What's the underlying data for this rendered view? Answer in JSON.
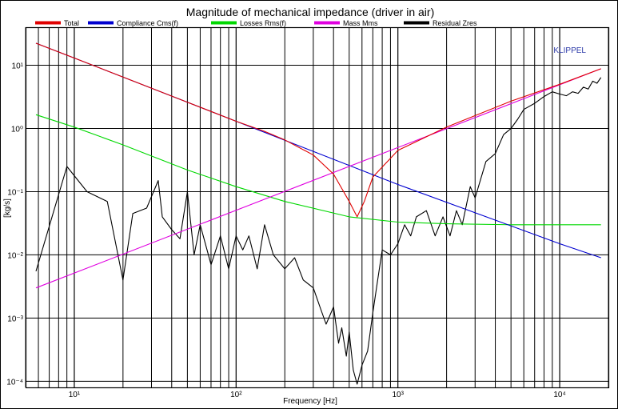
{
  "chart_data": {
    "type": "line",
    "title": "Magnitude of mechanical impedance (driver in air)",
    "xlabel": "Frequency [Hz]",
    "ylabel": "[kg/s]",
    "watermark": "KLIPPEL",
    "x_scale": "log",
    "y_scale": "log",
    "xlim": [
      5,
      20000
    ],
    "ylim": [
      8e-05,
      40
    ],
    "x_ticks": [
      {
        "value": 10,
        "label": "10¹"
      },
      {
        "value": 100,
        "label": "10²"
      },
      {
        "value": 1000,
        "label": "10³"
      },
      {
        "value": 10000,
        "label": "10⁴"
      }
    ],
    "y_ticks": [
      {
        "value": 10,
        "label": "10¹"
      },
      {
        "value": 1,
        "label": "10⁰"
      },
      {
        "value": 0.1,
        "label": "10⁻¹"
      },
      {
        "value": 0.01,
        "label": "10⁻²"
      },
      {
        "value": 0.001,
        "label": "10⁻³"
      },
      {
        "value": 0.0001,
        "label": "10⁻⁴"
      }
    ],
    "grid": "major and minor (log)",
    "legend_position": "top",
    "series": [
      {
        "name": "Total",
        "color": "#e00000",
        "x": [
          5.8,
          10,
          20,
          50,
          100,
          150,
          200,
          300,
          400,
          500,
          560,
          620,
          700,
          1000,
          2000,
          5000,
          10000,
          18000
        ],
        "y": [
          22.3,
          13.0,
          6.5,
          2.6,
          1.3,
          0.9,
          0.66,
          0.38,
          0.19,
          0.07,
          0.04,
          0.07,
          0.17,
          0.45,
          1.05,
          2.7,
          5.0,
          8.8
        ]
      },
      {
        "name": "Compliance Cms(f)",
        "color": "#0000d0",
        "x": [
          5.8,
          10,
          100,
          1000,
          10000,
          18000
        ],
        "y": [
          22.3,
          13.0,
          1.3,
          0.13,
          0.015,
          0.009
        ]
      },
      {
        "name": "Losses Rms(f)",
        "color": "#00d800",
        "x": [
          5.8,
          10,
          20,
          50,
          100,
          200,
          500,
          1000,
          2000,
          5000,
          18000
        ],
        "y": [
          1.65,
          1.05,
          0.55,
          0.22,
          0.12,
          0.07,
          0.04,
          0.033,
          0.031,
          0.03,
          0.03
        ]
      },
      {
        "name": "Mass Mms",
        "color": "#e000e0",
        "x": [
          5.8,
          18000
        ],
        "y": [
          0.003,
          8.8
        ]
      },
      {
        "name": "Residual Zres",
        "color": "#000000",
        "x": [
          5.8,
          9,
          12,
          16,
          20,
          23,
          28,
          33,
          35,
          40,
          45,
          50,
          55,
          60,
          70,
          80,
          90,
          100,
          110,
          120,
          135,
          150,
          170,
          200,
          230,
          260,
          300,
          330,
          360,
          400,
          430,
          450,
          480,
          500,
          530,
          560,
          600,
          650,
          700,
          750,
          800,
          900,
          1000,
          1100,
          1200,
          1300,
          1500,
          1700,
          1900,
          2100,
          2300,
          2500,
          2800,
          3000,
          3500,
          4000,
          4500,
          5000,
          5500,
          6000,
          7000,
          8000,
          9000,
          10000,
          11000,
          12000,
          13000,
          14000,
          15000,
          16000,
          17000,
          18000
        ],
        "y": [
          0.0055,
          0.25,
          0.1,
          0.07,
          0.004,
          0.045,
          0.055,
          0.15,
          0.04,
          0.025,
          0.018,
          0.1,
          0.01,
          0.03,
          0.007,
          0.02,
          0.006,
          0.02,
          0.012,
          0.02,
          0.006,
          0.03,
          0.01,
          0.006,
          0.009,
          0.004,
          0.003,
          0.0015,
          0.0008,
          0.0015,
          0.0004,
          0.0007,
          0.00025,
          0.0006,
          0.00015,
          9e-05,
          0.00018,
          0.0003,
          0.0012,
          0.004,
          0.012,
          0.01,
          0.015,
          0.03,
          0.02,
          0.04,
          0.05,
          0.02,
          0.04,
          0.02,
          0.05,
          0.03,
          0.12,
          0.08,
          0.3,
          0.4,
          0.8,
          1.0,
          1.4,
          2.0,
          2.5,
          3.2,
          3.8,
          3.5,
          3.3,
          3.8,
          3.6,
          4.5,
          4.2,
          5.6,
          5.2,
          6.4
        ]
      }
    ]
  }
}
